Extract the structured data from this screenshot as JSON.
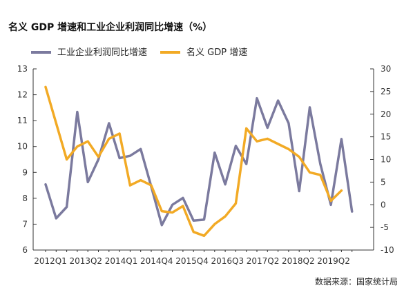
{
  "chart_data": {
    "type": "line",
    "title": "名义 GDP 增速和工业企业利润同比增速（%）",
    "source": "数据来源：国家统计局",
    "x_tick_labels": [
      "2012Q1",
      "2013Q2",
      "2014Q1",
      "2014Q4",
      "2015Q4",
      "2016Q3",
      "2017Q2",
      "2018Q2",
      "2019Q2"
    ],
    "left_axis": {
      "ylim": [
        6,
        13
      ],
      "ticks": [
        6,
        7,
        8,
        9,
        10,
        11,
        12,
        13
      ]
    },
    "right_axis": {
      "ylim": [
        -10,
        30
      ],
      "ticks": [
        -10,
        -5,
        0,
        5,
        10,
        15,
        20,
        25,
        30
      ]
    },
    "series": [
      {
        "name": "工业企业利润同比增速",
        "axis": "right",
        "color": "#7b7a9e",
        "values": [
          4.5,
          -3.0,
          -0.5,
          20.5,
          5.0,
          10.0,
          18.0,
          10.3,
          10.8,
          12.3,
          4.0,
          -4.5,
          0,
          1.5,
          -3.5,
          -3.3,
          11.5,
          4.5,
          13.0,
          9.0,
          23.5,
          17.0,
          23.0,
          18.0,
          3.0,
          21.5,
          9.0,
          0,
          14.5,
          -1.5
        ]
      },
      {
        "name": "名义 GDP 增速",
        "axis": "left",
        "color": "#f2aa25",
        "values": [
          12.3,
          10.9,
          9.5,
          10.0,
          10.2,
          9.6,
          10.3,
          10.5,
          8.5,
          8.7,
          8.5,
          7.5,
          7.45,
          7.7,
          6.7,
          6.55,
          7.0,
          7.3,
          7.8,
          10.7,
          10.2,
          10.3,
          10.1,
          9.9,
          9.6,
          9.0,
          8.9,
          7.9,
          8.3
        ]
      }
    ],
    "legend_position": "top-left",
    "grid": false
  }
}
